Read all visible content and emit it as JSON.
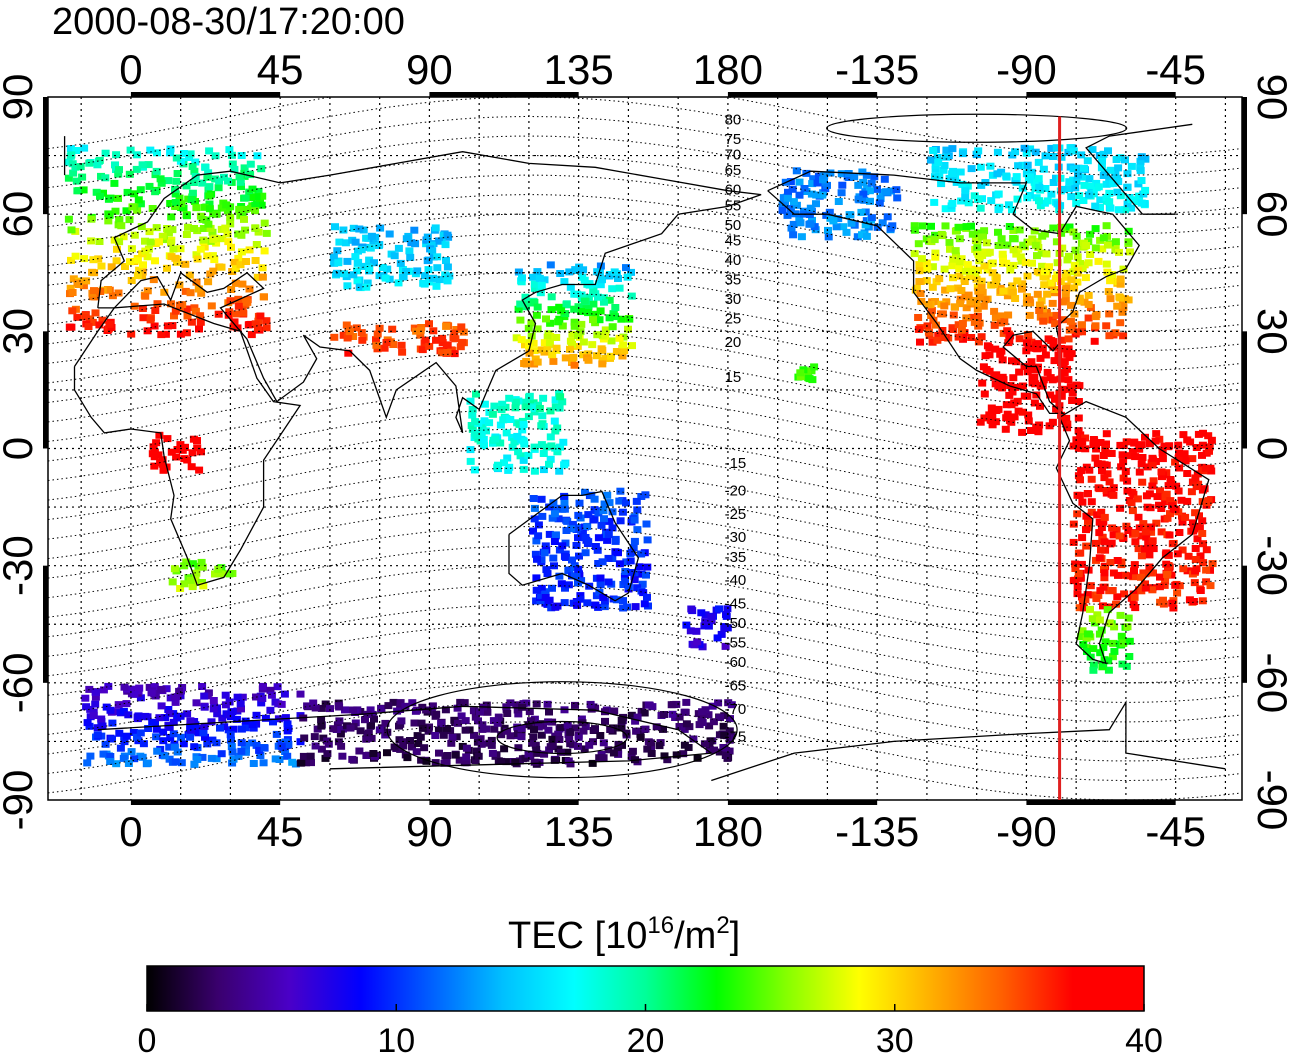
{
  "title": "2000-08-30/17:20:00",
  "map": {
    "lon_range": [
      -25,
      335
    ],
    "lat_range": [
      -90,
      90
    ],
    "x_ticks": [
      {
        "lon": 0,
        "label": "0"
      },
      {
        "lon": 45,
        "label": "45"
      },
      {
        "lon": 90,
        "label": "90"
      },
      {
        "lon": 135,
        "label": "135"
      },
      {
        "lon": 180,
        "label": "180"
      },
      {
        "lon": 225,
        "label": "-135"
      },
      {
        "lon": 270,
        "label": "-90"
      },
      {
        "lon": 315,
        "label": "-45"
      }
    ],
    "y_ticks": [
      {
        "lat": 90,
        "label": "90"
      },
      {
        "lat": 60,
        "label": "60"
      },
      {
        "lat": 30,
        "label": "30"
      },
      {
        "lat": 0,
        "label": "0"
      },
      {
        "lat": -30,
        "label": "-30"
      },
      {
        "lat": -60,
        "label": "-60"
      },
      {
        "lat": -90,
        "label": "-90"
      }
    ],
    "grid_step_deg": 15,
    "grid": true,
    "terminator_lon": 280,
    "terminator_color": "#e02020",
    "magnetic_lat_labels": [
      {
        "lat": 83,
        "label": "80"
      },
      {
        "lat": 78,
        "label": "75"
      },
      {
        "lat": 74,
        "label": "70"
      },
      {
        "lat": 70,
        "label": "65"
      },
      {
        "lat": 65,
        "label": "60"
      },
      {
        "lat": 61,
        "label": "55"
      },
      {
        "lat": 56,
        "label": "50"
      },
      {
        "lat": 52,
        "label": "45"
      },
      {
        "lat": 47,
        "label": "40"
      },
      {
        "lat": 42,
        "label": "35"
      },
      {
        "lat": 37,
        "label": "30"
      },
      {
        "lat": 32,
        "label": "25"
      },
      {
        "lat": 26,
        "label": "20"
      },
      {
        "lat": 17,
        "label": "15"
      },
      {
        "lat": -5,
        "label": "-15"
      },
      {
        "lat": -12,
        "label": "-20"
      },
      {
        "lat": -18,
        "label": "-25"
      },
      {
        "lat": -24,
        "label": "-30"
      },
      {
        "lat": -29,
        "label": "-35"
      },
      {
        "lat": -35,
        "label": "-40"
      },
      {
        "lat": -41,
        "label": "-45"
      },
      {
        "lat": -46,
        "label": "-50"
      },
      {
        "lat": -51,
        "label": "-55"
      },
      {
        "lat": -56,
        "label": "-60"
      },
      {
        "lat": -62,
        "label": "-65"
      },
      {
        "lat": -68,
        "label": "-70"
      },
      {
        "lat": -75,
        "label": "-75"
      }
    ],
    "tec_regions": [
      {
        "lon": [
          -20,
          40
        ],
        "lat": [
          30,
          78
        ],
        "tec_lat": [
          [
            30,
            38
          ],
          [
            78,
            17
          ]
        ]
      },
      {
        "lon": [
          60,
          95
        ],
        "lat": [
          42,
          58
        ],
        "tec_lat": [
          [
            42,
            16
          ],
          [
            58,
            14
          ]
        ]
      },
      {
        "lon": [
          60,
          100
        ],
        "lat": [
          25,
          33
        ],
        "tec_lat": [
          [
            25,
            36
          ],
          [
            33,
            34
          ]
        ]
      },
      {
        "lon": [
          115,
          150
        ],
        "lat": [
          22,
          48
        ],
        "tec_lat": [
          [
            22,
            33
          ],
          [
            48,
            13
          ]
        ]
      },
      {
        "lon": [
          100,
          130
        ],
        "lat": [
          -5,
          15
        ],
        "tec_lat": [
          [
            -5,
            17
          ],
          [
            15,
            19
          ]
        ]
      },
      {
        "lon": [
          120,
          155
        ],
        "lat": [
          -40,
          -10
        ],
        "tec_lat": [
          [
            -10,
            11
          ],
          [
            -40,
            9
          ]
        ]
      },
      {
        "lon": [
          165,
          180
        ],
        "lat": [
          -50,
          -40
        ],
        "tec_lat": [
          [
            -50,
            7
          ],
          [
            -40,
            8
          ]
        ]
      },
      {
        "lon": [
          -15,
          50
        ],
        "lat": [
          -80,
          -60
        ],
        "tec_lat": [
          [
            -80,
            12
          ],
          [
            -60,
            5
          ]
        ]
      },
      {
        "lon": [
          50,
          180
        ],
        "lat": [
          -80,
          -64
        ],
        "tec_lat": [
          [
            -80,
            2
          ],
          [
            -64,
            3
          ]
        ]
      },
      {
        "lon": [
          195,
          230
        ],
        "lat": [
          55,
          72
        ],
        "tec_lat": [
          [
            55,
            13
          ],
          [
            72,
            12
          ]
        ]
      },
      {
        "lon": [
          235,
          300
        ],
        "lat": [
          28,
          58
        ],
        "tec_lat": [
          [
            28,
            37
          ],
          [
            58,
            24
          ]
        ]
      },
      {
        "lon": [
          240,
          305
        ],
        "lat": [
          62,
          78
        ],
        "tec_lat": [
          [
            62,
            17
          ],
          [
            78,
            15
          ]
        ]
      },
      {
        "lon": [
          255,
          285
        ],
        "lat": [
          5,
          28
        ],
        "tec_lat": [
          [
            5,
            38
          ],
          [
            28,
            39
          ]
        ]
      },
      {
        "lon": [
          283,
          325
        ],
        "lat": [
          -40,
          5
        ],
        "tec_lat": [
          [
            5,
            38
          ],
          [
            -40,
            36
          ]
        ]
      },
      {
        "lon": [
          285,
          300
        ],
        "lat": [
          -56,
          -40
        ],
        "tec_lat": [
          [
            -40,
            26
          ],
          [
            -56,
            22
          ]
        ]
      },
      {
        "lon": [
          10,
          30
        ],
        "lat": [
          -35,
          -28
        ],
        "tec_lat": [
          [
            -35,
            27
          ],
          [
            -28,
            24
          ]
        ]
      },
      {
        "lon": [
          5,
          20
        ],
        "lat": [
          -5,
          5
        ],
        "tec_lat": [
          [
            -5,
            39
          ],
          [
            5,
            39
          ]
        ]
      },
      {
        "lon": [
          200,
          205
        ],
        "lat": [
          18,
          22
        ],
        "tec_lat": [
          [
            18,
            24
          ],
          [
            22,
            24
          ]
        ]
      }
    ]
  },
  "colorbar": {
    "title_prefix": "TEC  [10",
    "title_sup1": "16",
    "title_mid": "/m",
    "title_sup2": "2",
    "title_suffix": "]",
    "range": [
      0,
      40
    ],
    "ticks": [
      "0",
      "10",
      "20",
      "30",
      "40"
    ],
    "stops": [
      "#000000",
      "#3a006e",
      "#4a00c8",
      "#0000ff",
      "#0060ff",
      "#00c0ff",
      "#00ffff",
      "#00ff99",
      "#00ff00",
      "#88ff00",
      "#ffff00",
      "#ffb000",
      "#ff6000",
      "#ff0000",
      "#ff0000"
    ]
  }
}
